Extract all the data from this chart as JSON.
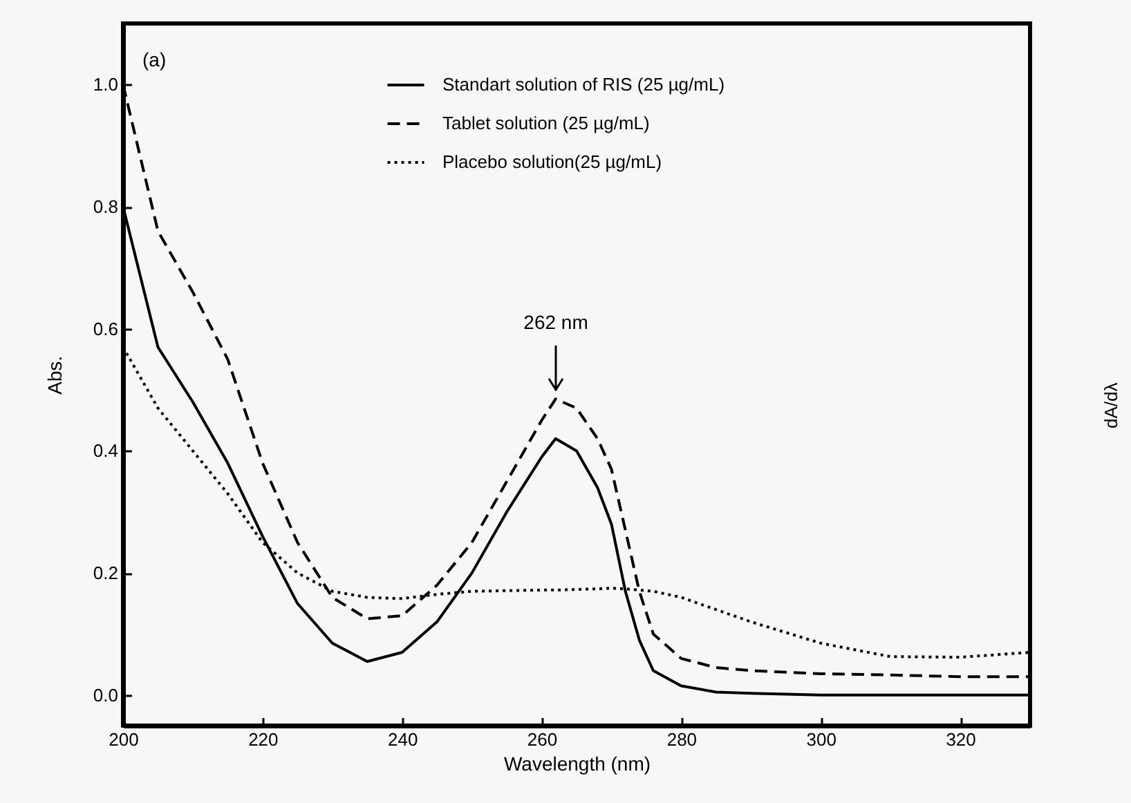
{
  "chart_data": {
    "type": "line",
    "xlabel": "Wavelength (nm)",
    "ylabel": "Abs.",
    "xlim": [
      200,
      330
    ],
    "ylim": [
      -0.05,
      1.1
    ],
    "xticks": [
      200,
      220,
      240,
      260,
      280,
      300,
      320
    ],
    "yticks": [
      {
        "value": 0,
        "label": "0.0"
      },
      {
        "value": 0.2,
        "label": "0.2"
      },
      {
        "value": 0.4,
        "label": "0.4"
      },
      {
        "value": 0.6,
        "label": "0.6"
      },
      {
        "value": 0.8,
        "label": "0.8"
      },
      {
        "value": 1,
        "label": "1.0"
      }
    ],
    "grid": false,
    "legend": "top",
    "marker": "none",
    "x": [
      200,
      205,
      210,
      215,
      220,
      225,
      230,
      235,
      240,
      245,
      250,
      255,
      260,
      262,
      265,
      268,
      270,
      272,
      274,
      276,
      280,
      285,
      290,
      300,
      310,
      320,
      330
    ],
    "series": [
      {
        "name": "Standart solution of RIS (25 µg/mL)",
        "color": "#000000",
        "line_style": "solid",
        "values": [
          0.8,
          0.57,
          0.48,
          0.38,
          0.26,
          0.15,
          0.085,
          0.055,
          0.07,
          0.12,
          0.2,
          0.3,
          0.39,
          0.42,
          0.4,
          0.34,
          0.28,
          0.17,
          0.09,
          0.04,
          0.015,
          0.005,
          0.003,
          0,
          0,
          0,
          0
        ]
      },
      {
        "name": "Tablet solution (25 µg/mL)",
        "color": "#000000",
        "line_style": "dashed",
        "values": [
          1.0,
          0.76,
          0.66,
          0.55,
          0.38,
          0.25,
          0.16,
          0.125,
          0.13,
          0.18,
          0.25,
          0.35,
          0.45,
          0.485,
          0.47,
          0.42,
          0.37,
          0.27,
          0.17,
          0.1,
          0.06,
          0.045,
          0.04,
          0.035,
          0.033,
          0.03,
          0.03
        ]
      },
      {
        "name": "Placebo solution(25 µg/mL)",
        "color": "#000000",
        "line_style": "dotted",
        "values": [
          0.57,
          0.47,
          0.4,
          0.33,
          0.25,
          0.2,
          0.17,
          0.16,
          0.158,
          0.165,
          0.17,
          0.171,
          0.172,
          0.172,
          0.173,
          0.174,
          0.175,
          0.174,
          0.172,
          0.17,
          0.16,
          0.14,
          0.12,
          0.085,
          0.063,
          0.062,
          0.07
        ]
      }
    ],
    "annotations": [
      "(a)",
      "262 nm",
      "dA/dλ"
    ]
  }
}
